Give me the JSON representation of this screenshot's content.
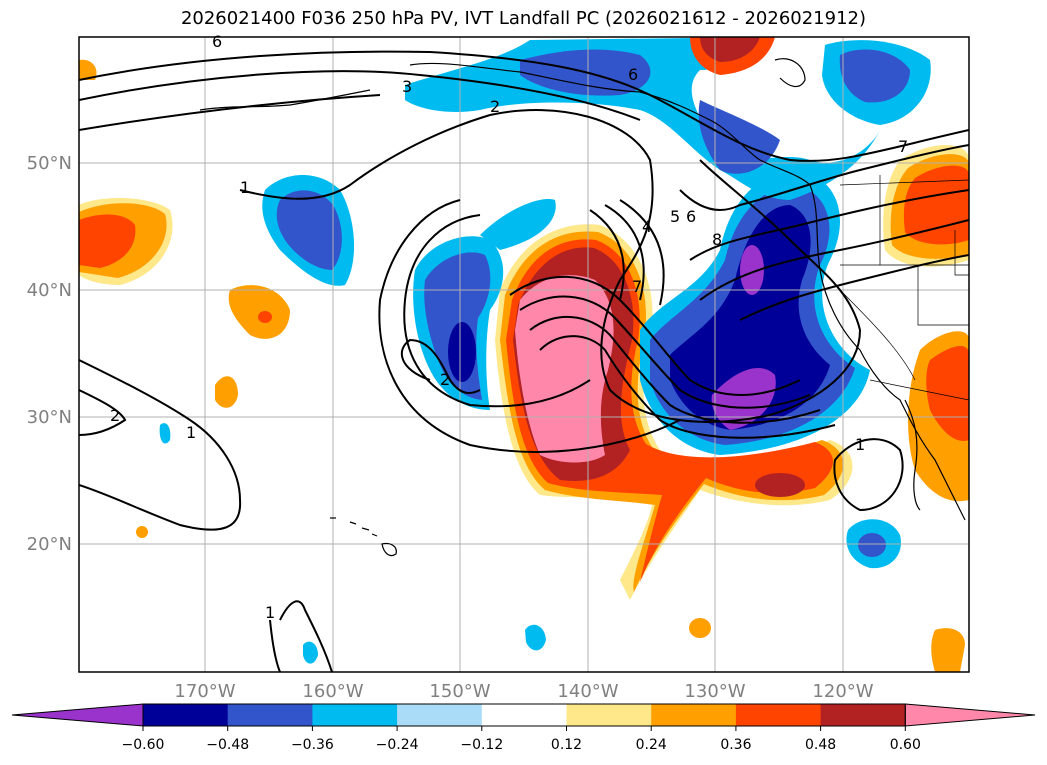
{
  "title": "2026021400 F036 250 hPa PV, IVT Landfall PC (2026021612 - 2026021912)",
  "lat_labels": [
    "50°N",
    "40°N",
    "30°N",
    "20°N"
  ],
  "lon_labels": [
    "170°W",
    "160°W",
    "150°W",
    "140°W",
    "130°W",
    "120°W"
  ],
  "colorbar": {
    "tick_labels": [
      "−0.60",
      "−0.48",
      "−0.36",
      "−0.24",
      "−0.12",
      "0.12",
      "0.24",
      "0.36",
      "0.48",
      "0.60"
    ],
    "colors": [
      "#9933cc",
      "#000099",
      "#3355cc",
      "#00bbf0",
      "#aadcf8",
      "#ffffff",
      "#ffe88a",
      "#ff9f00",
      "#ff4400",
      "#b22222",
      "#ff88aa"
    ]
  },
  "contour_labels": [
    "6",
    "6",
    "3",
    "2",
    "1",
    "5",
    "6",
    "4",
    "7",
    "8",
    "7",
    "2",
    "2",
    "1",
    "1",
    "1"
  ],
  "colors": {
    "contour": "#000000",
    "coast": "#000000",
    "grid": "#b0b0b0"
  }
}
